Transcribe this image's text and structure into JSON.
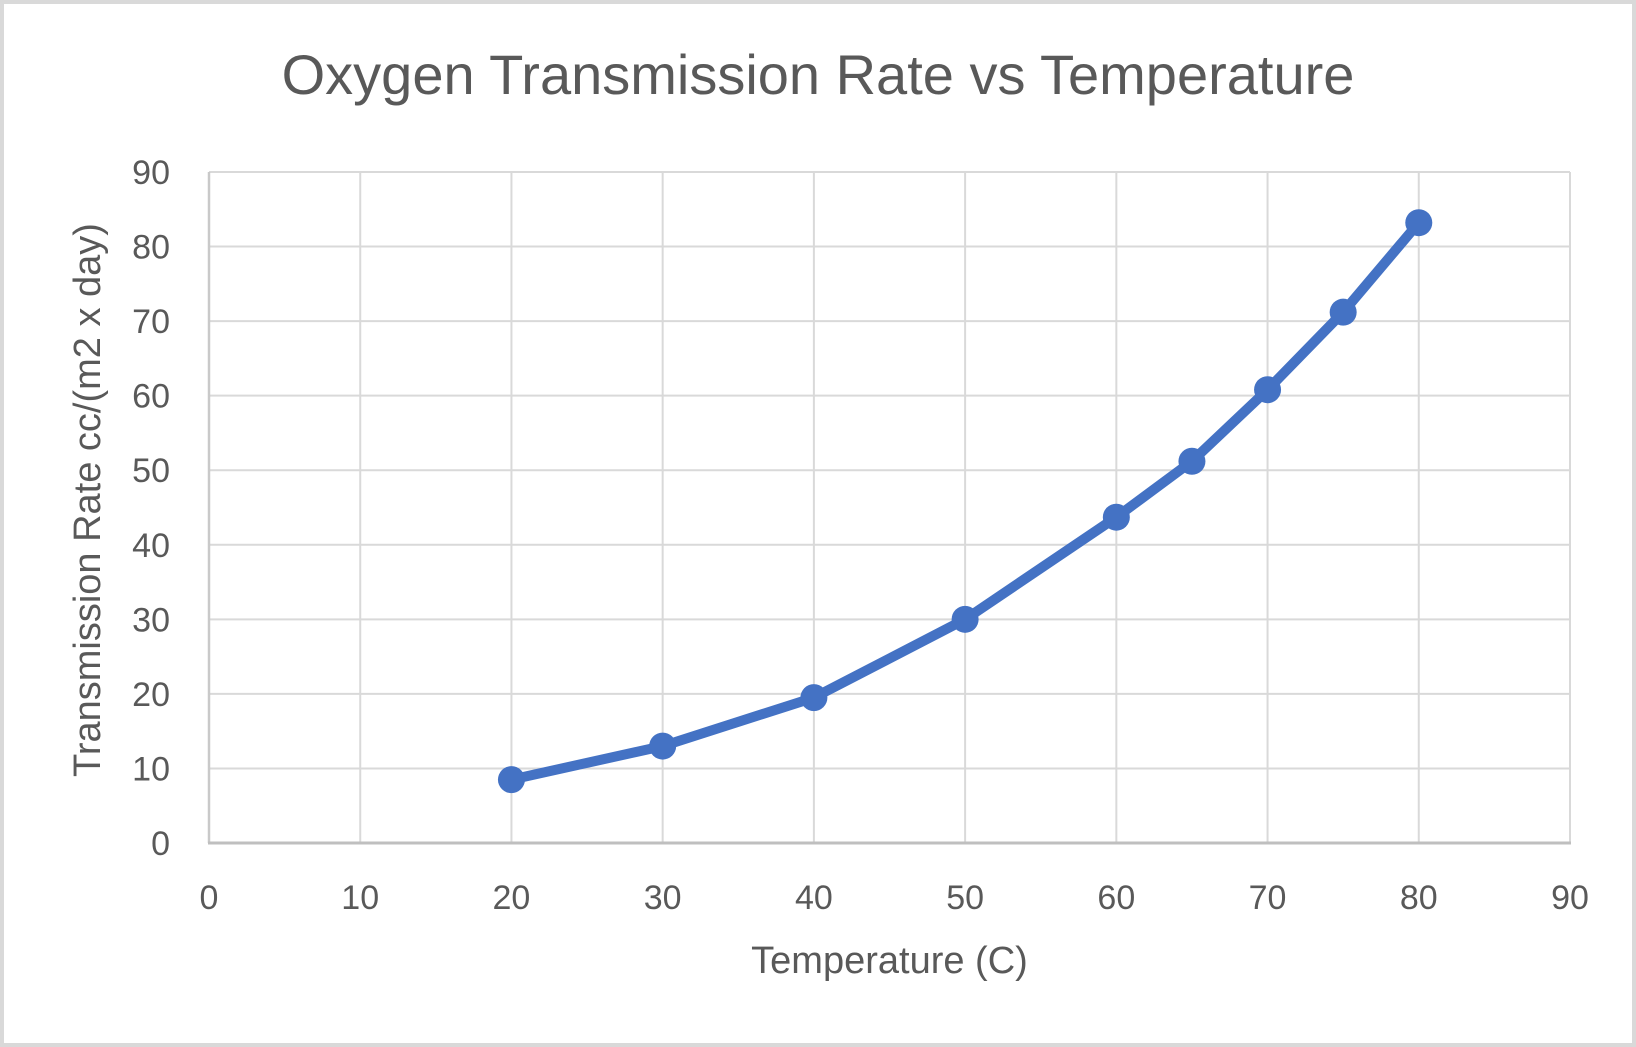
{
  "chart_data": {
    "type": "line",
    "title": "Oxygen Transmission Rate vs Temperature",
    "xlabel": "Temperature (C)",
    "ylabel": "Transmission Rate cc/(m2 x day)",
    "x": [
      20,
      30,
      40,
      50,
      60,
      65,
      70,
      75,
      80
    ],
    "y": [
      8.5,
      13.0,
      19.5,
      30.0,
      43.7,
      51.2,
      60.8,
      71.2,
      83.2
    ],
    "xlim": [
      0,
      90
    ],
    "ylim": [
      0,
      90
    ],
    "x_ticks": [
      0,
      10,
      20,
      30,
      40,
      50,
      60,
      70,
      80,
      90
    ],
    "y_ticks": [
      0,
      10,
      20,
      30,
      40,
      50,
      60,
      70,
      80,
      90
    ],
    "grid": true,
    "legend": false,
    "marker": "circle"
  },
  "colors": {
    "series": "#4472C4",
    "gridline": "#D9D9D9",
    "axis_line": "#BFBFBF",
    "left_axis_line": "#C9C9C9",
    "text": "#595959",
    "frame_border": "#D9D9D9",
    "background": "#FFFFFF"
  }
}
